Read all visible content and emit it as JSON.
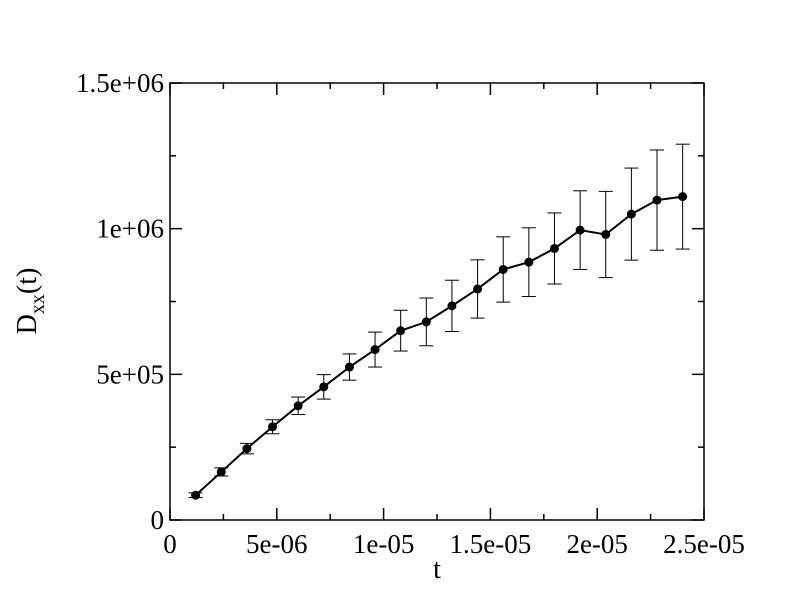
{
  "chart_data": {
    "type": "line",
    "title": "",
    "xlabel": "t",
    "ylabel_main": "D",
    "ylabel_sub": "xx",
    "ylabel_tail": "(t)",
    "xlim": [
      0,
      2.5e-05
    ],
    "ylim": [
      0,
      1500000
    ],
    "x_ticks": [
      {
        "value": 0,
        "label": "0"
      },
      {
        "value": 5e-06,
        "label": "5e-06"
      },
      {
        "value": 1e-05,
        "label": "1e-05"
      },
      {
        "value": 1.5e-05,
        "label": "1.5e-05"
      },
      {
        "value": 2e-05,
        "label": "2e-05"
      },
      {
        "value": 2.5e-05,
        "label": "2.5e-05"
      }
    ],
    "y_ticks": [
      {
        "value": 0,
        "label": "0"
      },
      {
        "value": 500000,
        "label": "5e+05"
      },
      {
        "value": 1000000,
        "label": "1e+06"
      },
      {
        "value": 1500000,
        "label": "1.5e+06"
      }
    ],
    "x_minor_step": 2.5e-06,
    "y_minor_step": 250000,
    "grid": false,
    "series": [
      {
        "color": "#000000",
        "marker": "circle",
        "x": [
          1.2e-06,
          2.4e-06,
          3.6e-06,
          4.8e-06,
          6e-06,
          7.2e-06,
          8.4e-06,
          9.6e-06,
          1.08e-05,
          1.2e-05,
          1.32e-05,
          1.44e-05,
          1.56e-05,
          1.68e-05,
          1.8e-05,
          1.92e-05,
          2.04e-05,
          2.16e-05,
          2.28e-05,
          2.4e-05
        ],
        "y": [
          85000,
          165000,
          245000,
          320000,
          392000,
          457000,
          525000,
          585000,
          650000,
          680000,
          735000,
          793000,
          860000,
          885000,
          932000,
          995000,
          980000,
          1050000,
          1098000,
          1110000
        ],
        "yerr": [
          8000,
          14000,
          18000,
          24000,
          30000,
          42000,
          45000,
          60000,
          70000,
          82000,
          88000,
          100000,
          112000,
          118000,
          122000,
          135000,
          148000,
          158000,
          172000,
          180000
        ]
      }
    ]
  }
}
